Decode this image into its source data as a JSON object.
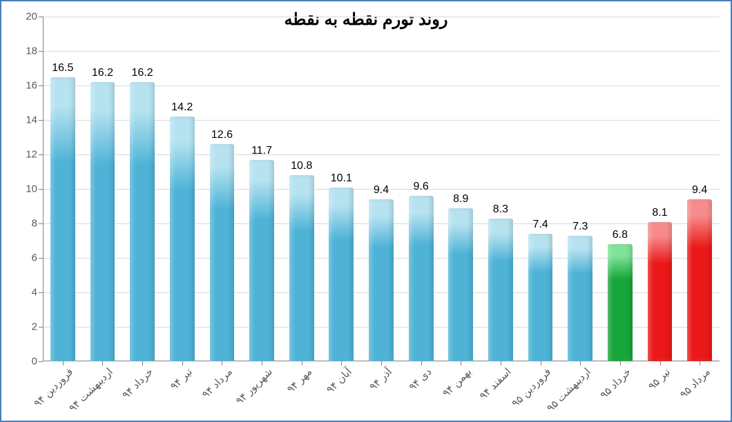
{
  "chart": {
    "type": "bar",
    "title": "روند تورم نقطه به نقطه",
    "title_fontsize": 24,
    "title_color": "#000000",
    "background_color": "#ffffff",
    "frame_border_color": "#4a7ebb",
    "grid_color": "#d9d9d9",
    "axis_color": "#808080",
    "label_color": "#5b5b5b",
    "value_label_color": "#000000",
    "value_label_fontsize": 16,
    "axis_label_fontsize": 15,
    "ylim": [
      0,
      20
    ],
    "ytick_step": 2,
    "yticks": [
      0,
      2,
      4,
      6,
      8,
      10,
      12,
      14,
      16,
      18,
      20
    ],
    "bar_width_ratio": 0.62,
    "bar_gradient_top": "#8fd0e8",
    "bar_gradient_bottom": "#4ab0d6",
    "bar_highlight_top": "#c2e8f4",
    "categories": [
      "فروردین ۹۴",
      "اردیبهشت ۹۴",
      "خرداد ۹۴",
      "تیر ۹۴",
      "مرداد ۹۴",
      "شهریور ۹۴",
      "مهر ۹۴",
      "آبان ۹۴",
      "آذر ۹۴",
      "دی ۹۴",
      "بهمن ۹۴",
      "اسفند ۹۴",
      "فروردین ۹۵",
      "اردیبهشت ۹۵",
      "خرداد ۹۵",
      "تیر ۹۵",
      "مرداد ۹۵"
    ],
    "values": [
      16.5,
      16.2,
      16.2,
      14.2,
      12.6,
      11.7,
      10.8,
      10.1,
      9.4,
      9.6,
      8.9,
      8.3,
      7.4,
      7.3,
      6.8,
      8.1,
      9.4
    ],
    "bar_colors": [
      "#4eb3d7",
      "#4eb3d7",
      "#4eb3d7",
      "#4eb3d7",
      "#4eb3d7",
      "#4eb3d7",
      "#4eb3d7",
      "#4eb3d7",
      "#4eb3d7",
      "#4eb3d7",
      "#4eb3d7",
      "#4eb3d7",
      "#4eb3d7",
      "#4eb3d7",
      "#18a53b",
      "#ea1818",
      "#ea1818"
    ],
    "bar_colors_light": [
      "#b7e3f1",
      "#b7e3f1",
      "#b7e3f1",
      "#b7e3f1",
      "#b7e3f1",
      "#b7e3f1",
      "#b7e3f1",
      "#b7e3f1",
      "#b7e3f1",
      "#b7e3f1",
      "#b7e3f1",
      "#b7e3f1",
      "#b7e3f1",
      "#b7e3f1",
      "#7fe29a",
      "#f78b8b",
      "#f78b8b"
    ]
  }
}
